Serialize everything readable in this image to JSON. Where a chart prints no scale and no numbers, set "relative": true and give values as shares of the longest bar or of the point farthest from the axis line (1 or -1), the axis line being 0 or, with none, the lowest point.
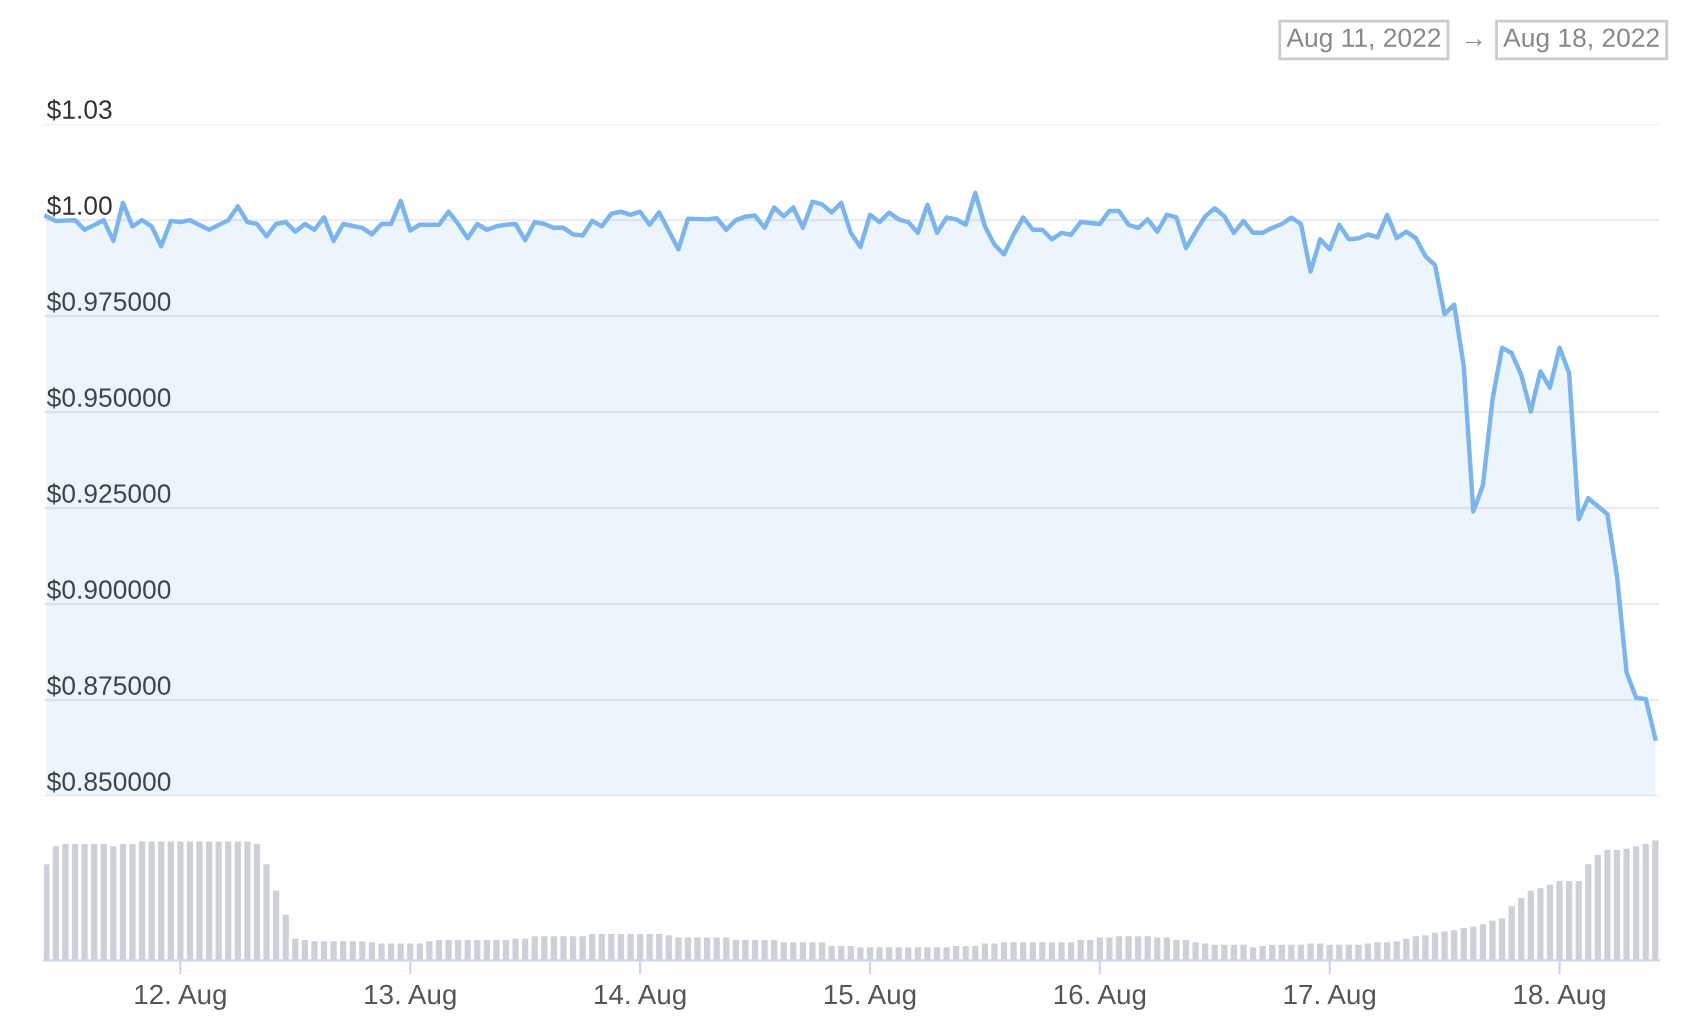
{
  "chart_data": [
    {
      "type": "area",
      "annotations": [
        "Aug 11, 2022",
        "→",
        "Aug 18, 2022"
      ],
      "xlim": [
        "2022-08-11T09:45",
        "2022-08-18T10:25"
      ],
      "ylim": [
        0.85,
        1.025
      ],
      "yticks": [
        {
          "value": 0.85,
          "label": "$0.850000"
        },
        {
          "value": 0.875,
          "label": "$0.875000"
        },
        {
          "value": 0.9,
          "label": "$0.900000"
        },
        {
          "value": 0.925,
          "label": "$0.925000"
        },
        {
          "value": 0.95,
          "label": "$0.950000"
        },
        {
          "value": 0.975,
          "label": "$0.975000"
        },
        {
          "value": 1.0,
          "label": "$1.00"
        },
        {
          "value": 1.025,
          "label": "$1.03"
        }
      ],
      "grid": "y",
      "tick_labels": "y",
      "legend": false,
      "series": [
        {
          "color": "#7cb5ec",
          "x": [
            "2022-08-11T10:00",
            "2022-08-11T11:00",
            "2022-08-11T13:00",
            "2022-08-11T14:00",
            "2022-08-11T16:00",
            "2022-08-11T17:00",
            "2022-08-11T18:00",
            "2022-08-11T19:00",
            "2022-08-11T20:00",
            "2022-08-11T21:00",
            "2022-08-11T22:00",
            "2022-08-11T23:00",
            "2022-08-12T00:00",
            "2022-08-12T01:00",
            "2022-08-12T03:00",
            "2022-08-12T05:00",
            "2022-08-12T06:00",
            "2022-08-12T07:00",
            "2022-08-12T08:00",
            "2022-08-12T09:00",
            "2022-08-12T10:00",
            "2022-08-12T11:00",
            "2022-08-12T12:00",
            "2022-08-12T13:00",
            "2022-08-12T14:00",
            "2022-08-12T15:00",
            "2022-08-12T16:00",
            "2022-08-12T17:00",
            "2022-08-12T19:00",
            "2022-08-12T20:00",
            "2022-08-12T21:00",
            "2022-08-12T22:00",
            "2022-08-12T23:00",
            "2022-08-13T00:00",
            "2022-08-13T01:00",
            "2022-08-13T03:00",
            "2022-08-13T04:00",
            "2022-08-13T05:00",
            "2022-08-13T06:00",
            "2022-08-13T07:00",
            "2022-08-13T08:00",
            "2022-08-13T09:00",
            "2022-08-13T10:00",
            "2022-08-13T11:00",
            "2022-08-13T12:00",
            "2022-08-13T13:00",
            "2022-08-13T14:00",
            "2022-08-13T15:00",
            "2022-08-13T16:00",
            "2022-08-13T17:00",
            "2022-08-13T18:00",
            "2022-08-13T19:00",
            "2022-08-13T20:00",
            "2022-08-13T21:00",
            "2022-08-13T22:00",
            "2022-08-13T23:00",
            "2022-08-14T00:00",
            "2022-08-14T01:00",
            "2022-08-14T02:00",
            "2022-08-14T04:00",
            "2022-08-14T05:00",
            "2022-08-14T07:00",
            "2022-08-14T08:00",
            "2022-08-14T09:00",
            "2022-08-14T10:00",
            "2022-08-14T11:00",
            "2022-08-14T12:00",
            "2022-08-14T13:00",
            "2022-08-14T14:00",
            "2022-08-14T15:00",
            "2022-08-14T16:00",
            "2022-08-14T17:00",
            "2022-08-14T18:00",
            "2022-08-14T19:00",
            "2022-08-14T20:00",
            "2022-08-14T21:00",
            "2022-08-14T22:00",
            "2022-08-14T23:00",
            "2022-08-15T00:00",
            "2022-08-15T01:00",
            "2022-08-15T02:00",
            "2022-08-15T03:00",
            "2022-08-15T04:00",
            "2022-08-15T05:00",
            "2022-08-15T06:00",
            "2022-08-15T07:00",
            "2022-08-15T08:00",
            "2022-08-15T09:00",
            "2022-08-15T10:00",
            "2022-08-15T11:00",
            "2022-08-15T12:00",
            "2022-08-15T13:00",
            "2022-08-15T14:00",
            "2022-08-15T15:00",
            "2022-08-15T16:00",
            "2022-08-15T17:00",
            "2022-08-15T18:00",
            "2022-08-15T19:00",
            "2022-08-15T20:00",
            "2022-08-15T21:00",
            "2022-08-15T22:00",
            "2022-08-16T00:00",
            "2022-08-16T01:00",
            "2022-08-16T02:00",
            "2022-08-16T03:00",
            "2022-08-16T04:00",
            "2022-08-16T05:00",
            "2022-08-16T06:00",
            "2022-08-16T07:00",
            "2022-08-16T08:00",
            "2022-08-16T09:00",
            "2022-08-16T10:00",
            "2022-08-16T11:00",
            "2022-08-16T12:00",
            "2022-08-16T13:00",
            "2022-08-16T14:00",
            "2022-08-16T15:00",
            "2022-08-16T16:00",
            "2022-08-16T17:00",
            "2022-08-16T18:00",
            "2022-08-16T19:00",
            "2022-08-16T20:00",
            "2022-08-16T21:00",
            "2022-08-16T22:00",
            "2022-08-16T23:00",
            "2022-08-17T00:00",
            "2022-08-17T01:00",
            "2022-08-17T02:00",
            "2022-08-17T03:00",
            "2022-08-17T04:00",
            "2022-08-17T05:00",
            "2022-08-17T06:00",
            "2022-08-17T07:00",
            "2022-08-17T08:00",
            "2022-08-17T09:00",
            "2022-08-17T10:00",
            "2022-08-17T11:00",
            "2022-08-17T12:00",
            "2022-08-17T13:00",
            "2022-08-17T14:00",
            "2022-08-17T15:00",
            "2022-08-17T16:00",
            "2022-08-17T17:00",
            "2022-08-17T18:00",
            "2022-08-17T19:00",
            "2022-08-17T20:00",
            "2022-08-17T21:00",
            "2022-08-17T22:00",
            "2022-08-17T23:00",
            "2022-08-18T00:00",
            "2022-08-18T01:00",
            "2022-08-18T02:00",
            "2022-08-18T03:00",
            "2022-08-18T04:00",
            "2022-08-18T05:00",
            "2022-08-18T06:00",
            "2022-08-18T07:00",
            "2022-08-18T08:00",
            "2022-08-18T09:00",
            "2022-08-18T10:00"
          ],
          "values": [
            1.001,
            0.9998,
            1.0,
            0.9975,
            1.0,
            0.9946,
            1.0045,
            0.9984,
            1.0,
            0.9984,
            0.9932,
            0.9998,
            0.9995,
            1.0,
            0.9975,
            1.0,
            1.0036,
            0.9995,
            0.999,
            0.9958,
            0.999,
            0.9995,
            0.997,
            0.999,
            0.9975,
            1.0007,
            0.9946,
            0.999,
            0.998,
            0.9963,
            0.999,
            0.999,
            1.005,
            0.9973,
            0.9988,
            0.9988,
            1.0022,
            0.999,
            0.9953,
            0.999,
            0.9975,
            0.9984,
            0.9988,
            0.999,
            0.9948,
            0.9995,
            0.999,
            0.998,
            0.998,
            0.9963,
            0.996,
            0.9998,
            0.9984,
            1.0017,
            1.0022,
            1.0014,
            1.0022,
            0.9988,
            1.002,
            0.9924,
            1.0004,
            1.0002,
            1.0005,
            0.9975,
            1.0,
            1.0009,
            1.0012,
            0.998,
            1.0033,
            1.001,
            1.0033,
            0.998,
            1.0048,
            1.0041,
            1.002,
            1.0045,
            0.9967,
            0.993,
            1.0014,
            0.9995,
            1.002,
            1.0002,
            0.9995,
            0.9967,
            1.004,
            0.9967,
            1.0007,
            1.0002,
            0.9988,
            1.0071,
            0.9984,
            0.9936,
            0.9911,
            0.9963,
            1.0007,
            0.9975,
            0.9975,
            0.995,
            0.9967,
            0.9962,
            0.9995,
            0.999,
            1.0024,
            1.0024,
            0.9988,
            0.998,
            1.0002,
            0.997,
            1.0014,
            1.0007,
            0.9927,
            0.997,
            1.001,
            1.0031,
            1.001,
            0.9967,
            0.9998,
            0.9967,
            0.9967,
            0.998,
            0.999,
            1.0007,
            0.999,
            0.9866,
            0.995,
            0.9924,
            0.9988,
            0.995,
            0.9953,
            0.9963,
            0.9955,
            1.0014,
            0.9953,
            0.997,
            0.9953,
            0.9906,
            0.9883,
            0.9755,
            0.978,
            0.962,
            0.9241,
            0.931,
            0.9533,
            0.9668,
            0.9654,
            0.9597,
            0.9502,
            0.9606,
            0.9564,
            0.9668,
            0.9602,
            0.9221,
            0.9276,
            0.9255,
            0.9234,
            0.9073,
            0.8822,
            0.8756,
            0.8753,
            0.865
          ]
        }
      ]
    },
    {
      "type": "bar",
      "relative": true,
      "tick_labels": "x",
      "xlim": [
        "2022-08-11T09:45",
        "2022-08-18T10:25"
      ],
      "xticks": [
        {
          "value": "2022-08-12",
          "label": "12. Aug"
        },
        {
          "value": "2022-08-13",
          "label": "13. Aug"
        },
        {
          "value": "2022-08-14",
          "label": "14. Aug"
        },
        {
          "value": "2022-08-15",
          "label": "15. Aug"
        },
        {
          "value": "2022-08-16",
          "label": "16. Aug"
        },
        {
          "value": "2022-08-17",
          "label": "17. Aug"
        },
        {
          "value": "2022-08-18",
          "label": "18. Aug"
        }
      ],
      "grid": false,
      "series": [
        {
          "color": "#cdd0d8",
          "x": [
            "2022-08-11T10:00",
            "2022-08-11T11:00",
            "2022-08-11T12:00",
            "2022-08-11T13:00",
            "2022-08-11T14:00",
            "2022-08-11T15:00",
            "2022-08-11T16:00",
            "2022-08-11T17:00",
            "2022-08-11T18:00",
            "2022-08-11T19:00",
            "2022-08-11T20:00",
            "2022-08-11T21:00",
            "2022-08-11T22:00",
            "2022-08-11T23:00",
            "2022-08-12T00:00",
            "2022-08-12T01:00",
            "2022-08-12T02:00",
            "2022-08-12T03:00",
            "2022-08-12T04:00",
            "2022-08-12T05:00",
            "2022-08-12T06:00",
            "2022-08-12T07:00",
            "2022-08-12T08:00",
            "2022-08-12T09:00",
            "2022-08-12T10:00",
            "2022-08-12T11:00",
            "2022-08-12T12:00",
            "2022-08-12T13:00",
            "2022-08-12T14:00",
            "2022-08-12T15:00",
            "2022-08-12T16:00",
            "2022-08-12T17:00",
            "2022-08-12T18:00",
            "2022-08-12T19:00",
            "2022-08-12T20:00",
            "2022-08-12T21:00",
            "2022-08-12T22:00",
            "2022-08-12T23:00",
            "2022-08-13T00:00",
            "2022-08-13T01:00",
            "2022-08-13T02:00",
            "2022-08-13T03:00",
            "2022-08-13T04:00",
            "2022-08-13T05:00",
            "2022-08-13T06:00",
            "2022-08-13T07:00",
            "2022-08-13T08:00",
            "2022-08-13T09:00",
            "2022-08-13T10:00",
            "2022-08-13T11:00",
            "2022-08-13T12:00",
            "2022-08-13T13:00",
            "2022-08-13T14:00",
            "2022-08-13T15:00",
            "2022-08-13T16:00",
            "2022-08-13T17:00",
            "2022-08-13T18:00",
            "2022-08-13T19:00",
            "2022-08-13T20:00",
            "2022-08-13T21:00",
            "2022-08-13T22:00",
            "2022-08-13T23:00",
            "2022-08-14T00:00",
            "2022-08-14T01:00",
            "2022-08-14T02:00",
            "2022-08-14T03:00",
            "2022-08-14T04:00",
            "2022-08-14T05:00",
            "2022-08-14T06:00",
            "2022-08-14T07:00",
            "2022-08-14T08:00",
            "2022-08-14T09:00",
            "2022-08-14T10:00",
            "2022-08-14T11:00",
            "2022-08-14T12:00",
            "2022-08-14T13:00",
            "2022-08-14T14:00",
            "2022-08-14T15:00",
            "2022-08-14T16:00",
            "2022-08-14T17:00",
            "2022-08-14T18:00",
            "2022-08-14T19:00",
            "2022-08-14T20:00",
            "2022-08-14T21:00",
            "2022-08-14T22:00",
            "2022-08-14T23:00",
            "2022-08-15T00:00",
            "2022-08-15T01:00",
            "2022-08-15T02:00",
            "2022-08-15T03:00",
            "2022-08-15T04:00",
            "2022-08-15T05:00",
            "2022-08-15T06:00",
            "2022-08-15T07:00",
            "2022-08-15T08:00",
            "2022-08-15T09:00",
            "2022-08-15T10:00",
            "2022-08-15T11:00",
            "2022-08-15T12:00",
            "2022-08-15T13:00",
            "2022-08-15T14:00",
            "2022-08-15T15:00",
            "2022-08-15T16:00",
            "2022-08-15T17:00",
            "2022-08-15T18:00",
            "2022-08-15T19:00",
            "2022-08-15T20:00",
            "2022-08-15T21:00",
            "2022-08-15T22:00",
            "2022-08-15T23:00",
            "2022-08-16T00:00",
            "2022-08-16T01:00",
            "2022-08-16T02:00",
            "2022-08-16T03:00",
            "2022-08-16T04:00",
            "2022-08-16T05:00",
            "2022-08-16T06:00",
            "2022-08-16T07:00",
            "2022-08-16T08:00",
            "2022-08-16T09:00",
            "2022-08-16T10:00",
            "2022-08-16T11:00",
            "2022-08-16T12:00",
            "2022-08-16T13:00",
            "2022-08-16T14:00",
            "2022-08-16T15:00",
            "2022-08-16T16:00",
            "2022-08-16T17:00",
            "2022-08-16T18:00",
            "2022-08-16T19:00",
            "2022-08-16T20:00",
            "2022-08-16T21:00",
            "2022-08-16T22:00",
            "2022-08-16T23:00",
            "2022-08-17T00:00",
            "2022-08-17T01:00",
            "2022-08-17T02:00",
            "2022-08-17T03:00",
            "2022-08-17T04:00",
            "2022-08-17T05:00",
            "2022-08-17T06:00",
            "2022-08-17T07:00",
            "2022-08-17T08:00",
            "2022-08-17T09:00",
            "2022-08-17T10:00",
            "2022-08-17T11:00",
            "2022-08-17T12:00",
            "2022-08-17T13:00",
            "2022-08-17T14:00",
            "2022-08-17T15:00",
            "2022-08-17T16:00",
            "2022-08-17T17:00",
            "2022-08-17T18:00",
            "2022-08-17T19:00",
            "2022-08-17T20:00",
            "2022-08-17T21:00",
            "2022-08-17T22:00",
            "2022-08-17T23:00",
            "2022-08-18T00:00",
            "2022-08-18T01:00",
            "2022-08-18T02:00",
            "2022-08-18T03:00",
            "2022-08-18T04:00",
            "2022-08-18T05:00",
            "2022-08-18T06:00",
            "2022-08-18T07:00",
            "2022-08-18T08:00",
            "2022-08-18T09:00",
            "2022-08-18T10:00"
          ],
          "values": [
            0.8,
            0.95,
            0.97,
            0.97,
            0.97,
            0.97,
            0.97,
            0.95,
            0.97,
            0.97,
            0.99,
            0.99,
            0.99,
            0.99,
            0.99,
            0.99,
            0.99,
            0.99,
            0.99,
            0.99,
            0.99,
            0.99,
            0.97,
            0.8,
            0.58,
            0.38,
            0.18,
            0.17,
            0.16,
            0.16,
            0.16,
            0.16,
            0.16,
            0.16,
            0.15,
            0.14,
            0.14,
            0.14,
            0.14,
            0.14,
            0.16,
            0.17,
            0.17,
            0.17,
            0.17,
            0.17,
            0.17,
            0.17,
            0.17,
            0.18,
            0.18,
            0.2,
            0.2,
            0.2,
            0.2,
            0.2,
            0.2,
            0.22,
            0.22,
            0.22,
            0.22,
            0.22,
            0.22,
            0.22,
            0.22,
            0.21,
            0.19,
            0.19,
            0.19,
            0.19,
            0.19,
            0.19,
            0.17,
            0.17,
            0.17,
            0.17,
            0.17,
            0.15,
            0.15,
            0.15,
            0.15,
            0.15,
            0.12,
            0.12,
            0.12,
            0.11,
            0.11,
            0.11,
            0.11,
            0.11,
            0.11,
            0.11,
            0.11,
            0.11,
            0.11,
            0.12,
            0.12,
            0.12,
            0.14,
            0.14,
            0.15,
            0.15,
            0.15,
            0.15,
            0.15,
            0.15,
            0.15,
            0.15,
            0.17,
            0.17,
            0.19,
            0.19,
            0.2,
            0.2,
            0.2,
            0.2,
            0.19,
            0.19,
            0.17,
            0.17,
            0.15,
            0.14,
            0.13,
            0.13,
            0.13,
            0.13,
            0.11,
            0.12,
            0.13,
            0.13,
            0.13,
            0.13,
            0.14,
            0.14,
            0.13,
            0.13,
            0.13,
            0.13,
            0.14,
            0.15,
            0.15,
            0.16,
            0.18,
            0.2,
            0.21,
            0.23,
            0.24,
            0.25,
            0.27,
            0.28,
            0.3,
            0.33,
            0.35,
            0.45,
            0.52,
            0.58,
            0.6,
            0.63,
            0.66,
            0.66,
            0.66,
            0.8,
            0.88,
            0.92,
            0.92,
            0.93,
            0.95,
            0.97,
            1.0
          ]
        }
      ]
    }
  ]
}
